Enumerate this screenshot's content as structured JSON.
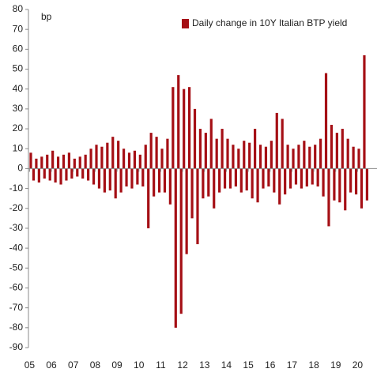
{
  "chart_data": {
    "type": "bar",
    "y_label": "bp",
    "legend": "Daily change in 10Y Italian BTP yield",
    "legend_position": "top-right",
    "color": "#a50f15",
    "x": [
      2005,
      2005.125,
      2005.25,
      2005.375,
      2005.5,
      2005.625,
      2005.75,
      2005.875,
      2006,
      2006.125,
      2006.25,
      2006.375,
      2006.5,
      2006.625,
      2006.75,
      2006.875,
      2007,
      2007.125,
      2007.25,
      2007.375,
      2007.5,
      2007.625,
      2007.75,
      2007.875,
      2008,
      2008.125,
      2008.25,
      2008.375,
      2008.5,
      2008.625,
      2008.75,
      2008.875,
      2009,
      2009.125,
      2009.25,
      2009.375,
      2009.5,
      2009.625,
      2009.75,
      2009.875,
      2010,
      2010.125,
      2010.25,
      2010.375,
      2010.5,
      2010.625,
      2010.75,
      2010.875,
      2011,
      2011.125,
      2011.25,
      2011.375,
      2011.5,
      2011.625,
      2011.75,
      2011.875,
      2012,
      2012.125,
      2012.25,
      2012.375,
      2012.5,
      2012.625,
      2012.75,
      2012.875,
      2013,
      2013.125,
      2013.25,
      2013.375,
      2013.5,
      2013.625,
      2013.75,
      2013.875,
      2014,
      2014.125,
      2014.25,
      2014.375,
      2014.5,
      2014.625,
      2014.75,
      2014.875,
      2015,
      2015.125,
      2015.25,
      2015.375,
      2015.5,
      2015.625,
      2015.75,
      2015.875,
      2016,
      2016.125,
      2016.25,
      2016.375,
      2016.5,
      2016.625,
      2016.75,
      2016.875,
      2017,
      2017.125,
      2017.25,
      2017.375,
      2017.5,
      2017.625,
      2017.75,
      2017.875,
      2018,
      2018.125,
      2018.25,
      2018.375,
      2018.5,
      2018.625,
      2018.75,
      2018.875,
      2019,
      2019.125,
      2019.25,
      2019.375,
      2019.5,
      2019.625,
      2019.75,
      2019.875,
      2020,
      2020.125,
      2020.25,
      2020.375
    ],
    "values": [
      8,
      -6,
      5,
      -7,
      6,
      -5,
      7,
      -6,
      9,
      -7,
      6,
      -8,
      7,
      -6,
      8,
      -5,
      5,
      -4,
      6,
      -5,
      7,
      -6,
      10,
      -8,
      12,
      -10,
      11,
      -12,
      13,
      -11,
      16,
      -15,
      14,
      -12,
      10,
      -9,
      8,
      -10,
      9,
      -8,
      7,
      -9,
      12,
      -30,
      18,
      -14,
      16,
      -12,
      10,
      -12,
      15,
      -18,
      41,
      -80,
      47,
      -73,
      40,
      -43,
      41,
      -25,
      30,
      -38,
      20,
      -15,
      18,
      -14,
      25,
      -20,
      15,
      -12,
      20,
      -10,
      15,
      -10,
      12,
      -9,
      10,
      -12,
      14,
      -11,
      13,
      -15,
      20,
      -17,
      12,
      -10,
      11,
      -9,
      14,
      -12,
      28,
      -18,
      25,
      -13,
      12,
      -10,
      10,
      -8,
      12,
      -10,
      14,
      -9,
      11,
      -8,
      12,
      -9,
      15,
      -14,
      48,
      -29,
      22,
      -16,
      18,
      -17,
      20,
      -21,
      15,
      -12,
      11,
      -13,
      10,
      -20,
      57,
      -16
    ],
    "xlim": [
      2004.95,
      2020.95
    ],
    "xticks": [
      {
        "value": 2005,
        "label": "05"
      },
      {
        "value": 2006,
        "label": "06"
      },
      {
        "value": 2007,
        "label": "07"
      },
      {
        "value": 2008,
        "label": "08"
      },
      {
        "value": 2009,
        "label": "09"
      },
      {
        "value": 2010,
        "label": "10"
      },
      {
        "value": 2011,
        "label": "11"
      },
      {
        "value": 2012,
        "label": "12"
      },
      {
        "value": 2013,
        "label": "13"
      },
      {
        "value": 2014,
        "label": "14"
      },
      {
        "value": 2015,
        "label": "15"
      },
      {
        "value": 2016,
        "label": "16"
      },
      {
        "value": 2017,
        "label": "17"
      },
      {
        "value": 2018,
        "label": "18"
      },
      {
        "value": 2019,
        "label": "19"
      },
      {
        "value": 2020,
        "label": "20"
      }
    ],
    "ylim": [
      -90,
      80
    ],
    "yticks": [
      -90,
      -80,
      -70,
      -60,
      -50,
      -40,
      -30,
      -20,
      -10,
      0,
      10,
      20,
      30,
      40,
      50,
      60,
      70,
      80
    ]
  }
}
